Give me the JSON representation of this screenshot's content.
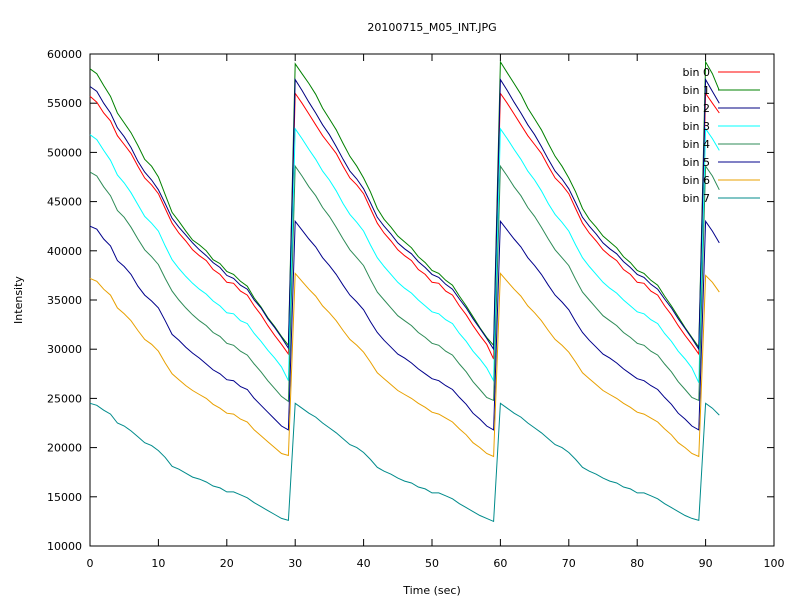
{
  "chart_data": {
    "type": "line",
    "title": "20100715_M05_INT.JPG",
    "xlabel": "Time (sec)",
    "ylabel": "Intensity",
    "xlim": [
      0,
      100
    ],
    "ylim": [
      10000,
      60000
    ],
    "xticks": [
      0,
      10,
      20,
      30,
      40,
      50,
      60,
      70,
      80,
      90,
      100
    ],
    "yticks": [
      10000,
      15000,
      20000,
      25000,
      30000,
      35000,
      40000,
      45000,
      50000,
      55000,
      60000
    ],
    "grid": false,
    "legend_position": "top-right",
    "x": [
      0,
      1,
      2,
      3,
      4,
      5,
      6,
      7,
      8,
      9,
      10,
      11,
      12,
      13,
      14,
      15,
      16,
      17,
      18,
      19,
      20,
      21,
      22,
      23,
      24,
      25,
      26,
      27,
      28,
      29,
      30,
      31,
      32,
      33,
      34,
      35,
      36,
      37,
      38,
      39,
      40,
      41,
      42,
      43,
      44,
      45,
      46,
      47,
      48,
      49,
      50,
      51,
      52,
      53,
      54,
      55,
      56,
      57,
      58,
      59,
      60,
      61,
      62,
      63,
      64,
      65,
      66,
      67,
      68,
      69,
      70,
      71,
      72,
      73,
      74,
      75,
      76,
      77,
      78,
      79,
      80,
      81,
      82,
      83,
      84,
      85,
      86,
      87,
      88,
      89,
      90,
      91,
      92
    ],
    "series": [
      {
        "name": "bin 0",
        "color": "#ff0000",
        "values": [
          55700,
          55100,
          54000,
          53200,
          51700,
          50800,
          49900,
          48600,
          47400,
          46700,
          45800,
          44300,
          42800,
          41800,
          41000,
          40100,
          39500,
          39000,
          38100,
          37600,
          36800,
          36700,
          35900,
          35500,
          34400,
          33500,
          32400,
          31400,
          30500,
          29500,
          56000,
          55000,
          53900,
          52800,
          51700,
          50800,
          49900,
          48600,
          47400,
          46700,
          45800,
          44300,
          42800,
          41800,
          41000,
          40100,
          39500,
          39000,
          38100,
          37600,
          36800,
          36700,
          35900,
          35500,
          34400,
          33500,
          32400,
          31400,
          30500,
          29000,
          56000,
          55000,
          53900,
          52800,
          51700,
          50800,
          49900,
          48600,
          47400,
          46700,
          45800,
          44300,
          42800,
          41800,
          41000,
          40100,
          39500,
          39000,
          38100,
          37600,
          36800,
          36700,
          35900,
          35500,
          34400,
          33500,
          32400,
          31400,
          30500,
          29500,
          56000,
          55000,
          54000
        ]
      },
      {
        "name": "bin 1",
        "color": "#008000",
        "values": [
          58500,
          58000,
          56800,
          55700,
          54000,
          53000,
          52000,
          50700,
          49300,
          48600,
          47500,
          45700,
          43900,
          43000,
          42000,
          41100,
          40600,
          40000,
          39100,
          38700,
          37900,
          37600,
          36900,
          36400,
          35200,
          34300,
          33200,
          32300,
          31300,
          30400,
          59000,
          58000,
          57000,
          55900,
          54500,
          53400,
          52300,
          50900,
          49600,
          48600,
          47400,
          46000,
          44300,
          43200,
          42400,
          41500,
          40900,
          40300,
          39400,
          38800,
          38000,
          37700,
          37000,
          36500,
          35400,
          34400,
          33300,
          32200,
          31200,
          30400,
          59200,
          58100,
          57000,
          55900,
          54500,
          53400,
          52300,
          50900,
          49600,
          48600,
          47400,
          46000,
          44300,
          43200,
          42400,
          41500,
          40900,
          40300,
          39400,
          38800,
          38000,
          37700,
          37000,
          36500,
          35400,
          34400,
          33300,
          32200,
          31200,
          30200,
          59200,
          58000,
          56300
        ]
      },
      {
        "name": "bin 2",
        "color": "#000080",
        "values": [
          56700,
          56200,
          55000,
          54000,
          52500,
          51600,
          50500,
          49100,
          48000,
          47200,
          46200,
          44800,
          43300,
          42400,
          41600,
          40800,
          40100,
          39500,
          38800,
          38300,
          37500,
          37200,
          36500,
          36100,
          35000,
          34200,
          33100,
          32200,
          31200,
          30100,
          57400,
          56300,
          55100,
          54000,
          52800,
          51800,
          50600,
          49300,
          48100,
          47300,
          46300,
          44900,
          43400,
          42500,
          41700,
          40800,
          40200,
          39700,
          38900,
          38300,
          37600,
          37300,
          36600,
          36100,
          35100,
          34200,
          33100,
          32100,
          31100,
          30000,
          57400,
          56300,
          55100,
          54000,
          52800,
          51800,
          50600,
          49300,
          48100,
          47300,
          46300,
          44900,
          43400,
          42500,
          41700,
          40800,
          40200,
          39700,
          38900,
          38300,
          37600,
          37300,
          36600,
          36100,
          35100,
          34200,
          33100,
          32100,
          31100,
          30000,
          57400,
          56200,
          55000
        ]
      },
      {
        "name": "bin 3",
        "color": "#00ffff",
        "values": [
          51800,
          51300,
          50200,
          49200,
          47700,
          46900,
          45900,
          44700,
          43500,
          42800,
          42000,
          40500,
          39100,
          38200,
          37400,
          36700,
          36100,
          35600,
          34900,
          34400,
          33700,
          33600,
          32900,
          32600,
          31600,
          30800,
          29900,
          29100,
          28200,
          26800,
          52400,
          51400,
          50300,
          49300,
          48100,
          47200,
          46100,
          44800,
          43700,
          42900,
          42000,
          40600,
          39300,
          38400,
          37600,
          36800,
          36200,
          35700,
          35000,
          34400,
          33800,
          33600,
          33000,
          32600,
          31600,
          30800,
          29800,
          29000,
          28100,
          26800,
          52400,
          51400,
          50300,
          49300,
          48100,
          47200,
          46100,
          44800,
          43700,
          42900,
          42000,
          40600,
          39300,
          38400,
          37600,
          36800,
          36200,
          35700,
          35000,
          34400,
          33800,
          33600,
          33000,
          32600,
          31600,
          30800,
          29800,
          29000,
          28100,
          26600,
          52400,
          51400,
          50200
        ]
      },
      {
        "name": "bin 4",
        "color": "#2e8b57",
        "values": [
          48000,
          47600,
          46500,
          45600,
          44100,
          43400,
          42400,
          41200,
          40100,
          39400,
          38600,
          37200,
          35900,
          35000,
          34200,
          33500,
          32900,
          32400,
          31700,
          31300,
          30600,
          30400,
          29800,
          29400,
          28500,
          27700,
          26800,
          26000,
          25200,
          24700,
          48600,
          47600,
          46500,
          45600,
          44400,
          43500,
          42400,
          41200,
          40100,
          39300,
          38500,
          37100,
          35800,
          35000,
          34200,
          33400,
          32900,
          32400,
          31700,
          31200,
          30600,
          30400,
          29800,
          29400,
          28500,
          27700,
          26700,
          25900,
          25100,
          24800,
          48600,
          47600,
          46500,
          45600,
          44400,
          43500,
          42400,
          41200,
          40100,
          39300,
          38500,
          37100,
          35800,
          35000,
          34200,
          33400,
          32900,
          32400,
          31700,
          31200,
          30600,
          30400,
          29800,
          29400,
          28500,
          27700,
          26700,
          25900,
          25100,
          24800,
          48600,
          47600,
          46200
        ]
      },
      {
        "name": "bin 5",
        "color": "#00008b",
        "values": [
          42500,
          42200,
          41200,
          40500,
          39000,
          38400,
          37600,
          36400,
          35500,
          34900,
          34200,
          32900,
          31500,
          30900,
          30200,
          29600,
          29100,
          28500,
          27900,
          27500,
          26900,
          26800,
          26200,
          25900,
          25000,
          24300,
          23600,
          22900,
          22200,
          21800,
          43000,
          42100,
          41200,
          40400,
          39300,
          38500,
          37600,
          36500,
          35500,
          34800,
          34000,
          32800,
          31700,
          30900,
          30200,
          29500,
          29100,
          28600,
          28000,
          27500,
          27000,
          26800,
          26300,
          25900,
          25100,
          24400,
          23500,
          22900,
          22200,
          21800,
          43000,
          42100,
          41200,
          40400,
          39300,
          38500,
          37600,
          36500,
          35500,
          34800,
          34000,
          32800,
          31700,
          30900,
          30200,
          29500,
          29100,
          28600,
          28000,
          27500,
          27000,
          26800,
          26300,
          25900,
          25100,
          24400,
          23500,
          22900,
          22200,
          21800,
          43000,
          42000,
          40800
        ]
      },
      {
        "name": "bin 6",
        "color": "#e8a000",
        "values": [
          37200,
          36900,
          36100,
          35500,
          34200,
          33600,
          32900,
          31900,
          31000,
          30500,
          29800,
          28600,
          27500,
          26900,
          26300,
          25800,
          25400,
          25000,
          24400,
          24000,
          23500,
          23400,
          22900,
          22600,
          21800,
          21200,
          20600,
          20000,
          19400,
          19200,
          37700,
          36900,
          36100,
          35400,
          34400,
          33700,
          32900,
          31900,
          31000,
          30400,
          29700,
          28700,
          27600,
          27000,
          26400,
          25800,
          25400,
          25000,
          24500,
          24100,
          23600,
          23400,
          23000,
          22600,
          21900,
          21300,
          20500,
          20000,
          19400,
          19100,
          37700,
          36900,
          36100,
          35400,
          34400,
          33700,
          32900,
          31900,
          31000,
          30400,
          29700,
          28700,
          27600,
          27000,
          26400,
          25800,
          25400,
          25000,
          24500,
          24100,
          23600,
          23400,
          23000,
          22600,
          21900,
          21300,
          20500,
          20000,
          19400,
          19100,
          37500,
          36800,
          35800
        ]
      },
      {
        "name": "bin 7",
        "color": "#008b8b",
        "values": [
          24500,
          24300,
          23800,
          23400,
          22500,
          22200,
          21700,
          21100,
          20500,
          20200,
          19700,
          19000,
          18100,
          17800,
          17400,
          17000,
          16800,
          16500,
          16100,
          15900,
          15500,
          15500,
          15200,
          14900,
          14400,
          14000,
          13600,
          13200,
          12800,
          12600,
          24500,
          24000,
          23500,
          23100,
          22500,
          22000,
          21500,
          20900,
          20300,
          20000,
          19500,
          18800,
          18000,
          17600,
          17300,
          16900,
          16600,
          16400,
          16000,
          15800,
          15400,
          15400,
          15100,
          14800,
          14300,
          13900,
          13500,
          13100,
          12800,
          12500,
          24500,
          24000,
          23500,
          23100,
          22500,
          22000,
          21500,
          20900,
          20300,
          20000,
          19500,
          18800,
          18000,
          17600,
          17300,
          16900,
          16600,
          16400,
          16000,
          15800,
          15400,
          15400,
          15100,
          14800,
          14300,
          13900,
          13500,
          13100,
          12800,
          12600,
          24500,
          24000,
          23300
        ]
      }
    ]
  }
}
